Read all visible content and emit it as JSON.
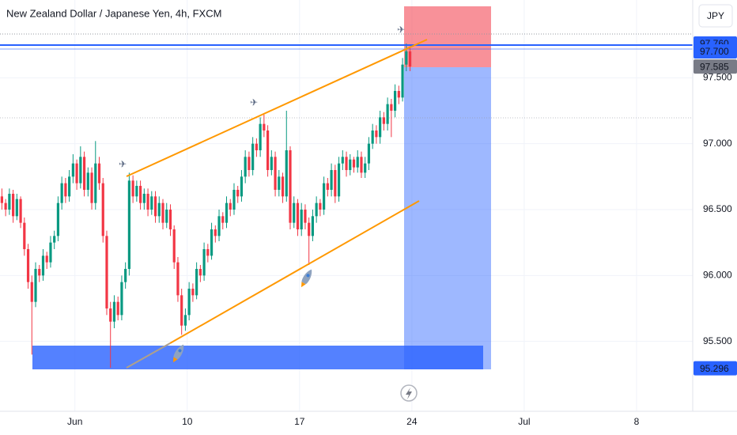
{
  "chart_data": {
    "type": "candlestick",
    "title": "New Zealand Dollar / Japanese Yen, 4h, FXCM",
    "currency": "JPY",
    "up_color": "#089981",
    "down_color": "#f23645",
    "grid": true,
    "ylim": [
      94.97,
      98.09
    ],
    "yticks": [
      {
        "value": 95.5,
        "label": "95.500"
      },
      {
        "value": 96,
        "label": "96.000"
      },
      {
        "value": 96.5,
        "label": "96.500"
      },
      {
        "value": 97,
        "label": "97.000"
      },
      {
        "value": 97.5,
        "label": "97.500"
      }
    ],
    "xlim": [
      0,
      185
    ],
    "xticks": [
      {
        "value": 20,
        "label": "Jun"
      },
      {
        "value": 50,
        "label": "10"
      },
      {
        "value": 80,
        "label": "17"
      },
      {
        "value": 110,
        "label": "24"
      },
      {
        "value": 140,
        "label": "Jul"
      },
      {
        "value": 170,
        "label": "8"
      }
    ],
    "price_labels": [
      {
        "value": 97.76,
        "label": "97.760",
        "color": "#2962ff"
      },
      {
        "value": 97.7,
        "label": "97.700",
        "color": "#2962ff"
      },
      {
        "value": 97.585,
        "label": "97.585",
        "color": "#787b86"
      },
      {
        "value": 95.296,
        "label": "95.296",
        "color": "#2962ff"
      }
    ],
    "x": [
      0,
      1,
      2,
      3,
      4,
      5,
      6,
      7,
      8,
      9,
      10,
      11,
      12,
      13,
      14,
      15,
      16,
      17,
      18,
      19,
      20,
      21,
      22,
      23,
      24,
      25,
      26,
      27,
      28,
      29,
      30,
      31,
      32,
      33,
      34,
      35,
      36,
      37,
      38,
      39,
      40,
      41,
      42,
      43,
      44,
      45,
      46,
      47,
      48,
      49,
      50,
      51,
      52,
      53,
      54,
      55,
      56,
      57,
      58,
      59,
      60,
      61,
      62,
      63,
      64,
      65,
      66,
      67,
      68,
      69,
      70,
      71,
      72,
      73,
      74,
      75,
      76,
      77,
      78,
      79,
      80,
      81,
      82,
      83,
      84,
      85,
      86,
      87,
      88,
      89,
      90,
      91,
      92,
      93,
      94,
      95,
      96,
      97,
      98,
      99,
      100,
      101,
      102,
      103,
      104,
      105,
      106,
      107,
      108,
      109
    ],
    "candles": [
      [
        96.6,
        96.66,
        96.5,
        96.55
      ],
      [
        96.55,
        96.58,
        96.45,
        96.5
      ],
      [
        96.5,
        96.66,
        96.46,
        96.62
      ],
      [
        96.62,
        96.65,
        96.4,
        96.45
      ],
      [
        96.45,
        96.62,
        96.42,
        96.58
      ],
      [
        96.58,
        96.6,
        96.36,
        96.4
      ],
      [
        96.4,
        96.44,
        96.15,
        96.2
      ],
      [
        96.2,
        96.24,
        95.9,
        95.95
      ],
      [
        95.95,
        96.0,
        95.4,
        95.8
      ],
      [
        95.8,
        96.1,
        95.76,
        96.05
      ],
      [
        96.05,
        96.08,
        95.95,
        96.0
      ],
      [
        96.0,
        96.2,
        95.96,
        96.15
      ],
      [
        96.15,
        96.18,
        96.05,
        96.1
      ],
      [
        96.1,
        96.3,
        96.06,
        96.25
      ],
      [
        96.25,
        96.34,
        96.2,
        96.3
      ],
      [
        96.3,
        96.6,
        96.26,
        96.55
      ],
      [
        96.55,
        96.75,
        96.5,
        96.7
      ],
      [
        96.7,
        96.74,
        96.55,
        96.6
      ],
      [
        96.6,
        96.8,
        96.56,
        96.75
      ],
      [
        96.75,
        96.92,
        96.7,
        96.85
      ],
      [
        96.85,
        96.88,
        96.65,
        96.7
      ],
      [
        96.7,
        96.98,
        96.66,
        96.9
      ],
      [
        96.9,
        96.94,
        96.6,
        96.65
      ],
      [
        96.65,
        96.82,
        96.6,
        96.78
      ],
      [
        96.78,
        96.82,
        96.5,
        96.55
      ],
      [
        96.55,
        97.02,
        96.5,
        96.85
      ],
      [
        96.85,
        96.9,
        96.65,
        96.7
      ],
      [
        96.7,
        96.74,
        96.25,
        96.3
      ],
      [
        96.3,
        96.34,
        95.7,
        95.75
      ],
      [
        95.75,
        95.8,
        95.3,
        95.65
      ],
      [
        95.65,
        95.85,
        95.6,
        95.8
      ],
      [
        95.8,
        95.84,
        95.66,
        95.7
      ],
      [
        95.7,
        96.0,
        95.66,
        95.95
      ],
      [
        95.95,
        96.1,
        95.9,
        96.05
      ],
      [
        96.05,
        96.78,
        96.0,
        96.72
      ],
      [
        96.72,
        96.76,
        96.55,
        96.6
      ],
      [
        96.6,
        96.72,
        96.56,
        96.68
      ],
      [
        96.68,
        96.72,
        96.5,
        96.55
      ],
      [
        96.55,
        96.66,
        96.5,
        96.62
      ],
      [
        96.62,
        96.66,
        96.45,
        96.5
      ],
      [
        96.5,
        96.64,
        96.46,
        96.6
      ],
      [
        96.6,
        96.64,
        96.4,
        96.45
      ],
      [
        96.45,
        96.6,
        96.4,
        96.55
      ],
      [
        96.55,
        96.58,
        96.35,
        96.4
      ],
      [
        96.4,
        96.55,
        96.36,
        96.5
      ],
      [
        96.5,
        96.54,
        96.3,
        96.35
      ],
      [
        96.35,
        96.38,
        96.05,
        96.1
      ],
      [
        96.1,
        96.14,
        95.8,
        95.85
      ],
      [
        95.85,
        95.9,
        95.55,
        95.62
      ],
      [
        95.62,
        95.75,
        95.58,
        95.7
      ],
      [
        95.7,
        95.95,
        95.66,
        95.9
      ],
      [
        95.9,
        95.94,
        95.8,
        95.85
      ],
      [
        95.85,
        96.1,
        95.82,
        96.05
      ],
      [
        96.05,
        96.08,
        95.95,
        96.0
      ],
      [
        96.0,
        96.25,
        95.96,
        96.2
      ],
      [
        96.2,
        96.24,
        96.1,
        96.15
      ],
      [
        96.15,
        96.4,
        96.12,
        96.35
      ],
      [
        96.35,
        96.38,
        96.25,
        96.3
      ],
      [
        96.3,
        96.5,
        96.26,
        96.45
      ],
      [
        96.45,
        96.48,
        96.35,
        96.4
      ],
      [
        96.4,
        96.6,
        96.36,
        96.55
      ],
      [
        96.55,
        96.58,
        96.45,
        96.5
      ],
      [
        96.5,
        96.7,
        96.46,
        96.65
      ],
      [
        96.65,
        96.68,
        96.55,
        96.6
      ],
      [
        96.6,
        96.8,
        96.56,
        96.75
      ],
      [
        96.75,
        96.95,
        96.7,
        96.9
      ],
      [
        96.9,
        96.94,
        96.75,
        96.8
      ],
      [
        96.8,
        97.05,
        96.76,
        97.0
      ],
      [
        97.0,
        97.04,
        96.9,
        96.95
      ],
      [
        96.95,
        97.2,
        96.9,
        97.15
      ],
      [
        97.15,
        97.22,
        97.05,
        97.1
      ],
      [
        97.1,
        97.14,
        96.75,
        96.8
      ],
      [
        96.8,
        96.95,
        96.76,
        96.9
      ],
      [
        96.9,
        96.94,
        96.6,
        96.65
      ],
      [
        96.65,
        96.8,
        96.6,
        96.75
      ],
      [
        96.75,
        96.78,
        96.55,
        96.6
      ],
      [
        96.6,
        97.25,
        96.56,
        96.95
      ],
      [
        96.95,
        96.98,
        96.35,
        96.4
      ],
      [
        96.4,
        96.6,
        96.36,
        96.55
      ],
      [
        96.55,
        96.58,
        96.3,
        96.35
      ],
      [
        96.35,
        96.55,
        96.3,
        96.5
      ],
      [
        96.5,
        96.54,
        96.35,
        96.4
      ],
      [
        96.4,
        96.44,
        96.08,
        96.3
      ],
      [
        96.3,
        96.5,
        96.26,
        96.45
      ],
      [
        96.45,
        96.6,
        96.4,
        96.55
      ],
      [
        96.55,
        96.58,
        96.45,
        96.5
      ],
      [
        96.5,
        96.75,
        96.46,
        96.7
      ],
      [
        96.7,
        96.74,
        96.6,
        96.65
      ],
      [
        96.65,
        96.85,
        96.6,
        96.8
      ],
      [
        96.8,
        96.84,
        96.55,
        96.6
      ],
      [
        96.6,
        96.9,
        96.56,
        96.85
      ],
      [
        96.85,
        96.95,
        96.8,
        96.9
      ],
      [
        96.9,
        96.94,
        96.75,
        96.8
      ],
      [
        96.8,
        96.92,
        96.76,
        96.88
      ],
      [
        96.88,
        96.9,
        96.78,
        96.82
      ],
      [
        96.82,
        96.95,
        96.78,
        96.9
      ],
      [
        96.9,
        96.94,
        96.74,
        96.78
      ],
      [
        96.78,
        96.9,
        96.74,
        96.85
      ],
      [
        96.85,
        97.05,
        96.8,
        97.0
      ],
      [
        97.0,
        97.15,
        96.96,
        97.1
      ],
      [
        97.1,
        97.14,
        97.0,
        97.05
      ],
      [
        97.05,
        97.25,
        97.0,
        97.2
      ],
      [
        97.2,
        97.24,
        97.1,
        97.15
      ],
      [
        97.15,
        97.35,
        97.1,
        97.3
      ],
      [
        97.3,
        97.34,
        97.05,
        97.25
      ],
      [
        97.25,
        97.45,
        97.2,
        97.4
      ],
      [
        97.4,
        97.44,
        97.3,
        97.35
      ],
      [
        97.35,
        97.65,
        97.32,
        97.6
      ],
      [
        97.6,
        97.76,
        97.55,
        97.7
      ],
      [
        97.7,
        97.74,
        97.55,
        97.585
      ]
    ]
  }
}
